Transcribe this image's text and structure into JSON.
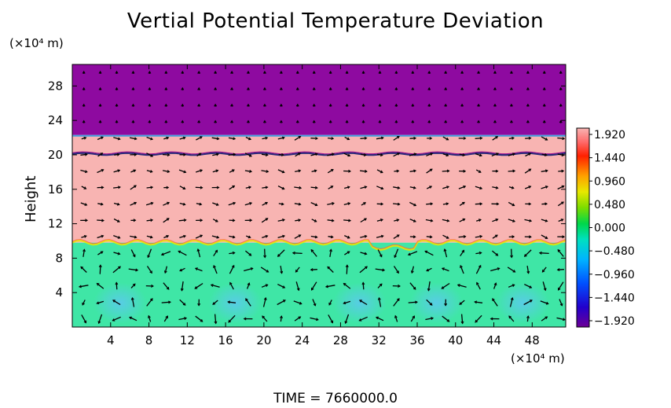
{
  "chart_data": {
    "type": "heatmap",
    "title": "Vertial Potential Temperature Deviation",
    "ylabel": "Height",
    "xlabel": "",
    "x_unit": "(×10⁴ m)",
    "y_unit": "(×10⁴ m)",
    "xlim": [
      0,
      51.5
    ],
    "ylim": [
      0,
      30.5
    ],
    "x_ticks": [
      4,
      8,
      12,
      16,
      20,
      24,
      28,
      32,
      36,
      40,
      44,
      48
    ],
    "y_ticks": [
      4,
      8,
      12,
      16,
      20,
      24,
      28
    ],
    "grid": false,
    "colorbar": {
      "ticks": [
        "1.920",
        "1.440",
        "0.960",
        "0.480",
        "0.000",
        "−0.480",
        "−0.960",
        "−1.440",
        "−1.920"
      ],
      "range": [
        -1.92,
        1.92
      ]
    },
    "layers": [
      {
        "name": "upper",
        "y_from": 22.3,
        "y_to": 30.5,
        "value": -1.92,
        "color": "#8e0aa0"
      },
      {
        "name": "middle",
        "y_from": 9.8,
        "y_to": 22.3,
        "value": 1.92,
        "color": "#f8b4b2"
      },
      {
        "name": "lower",
        "y_from": 0,
        "y_to": 9.8,
        "value": 0.2,
        "color": "#3fe6a6"
      }
    ],
    "interface_line_y": 20.1,
    "time_label": "TIME = 7660000.0",
    "colors": {
      "vector": "#000000",
      "frame": "#000000"
    }
  }
}
